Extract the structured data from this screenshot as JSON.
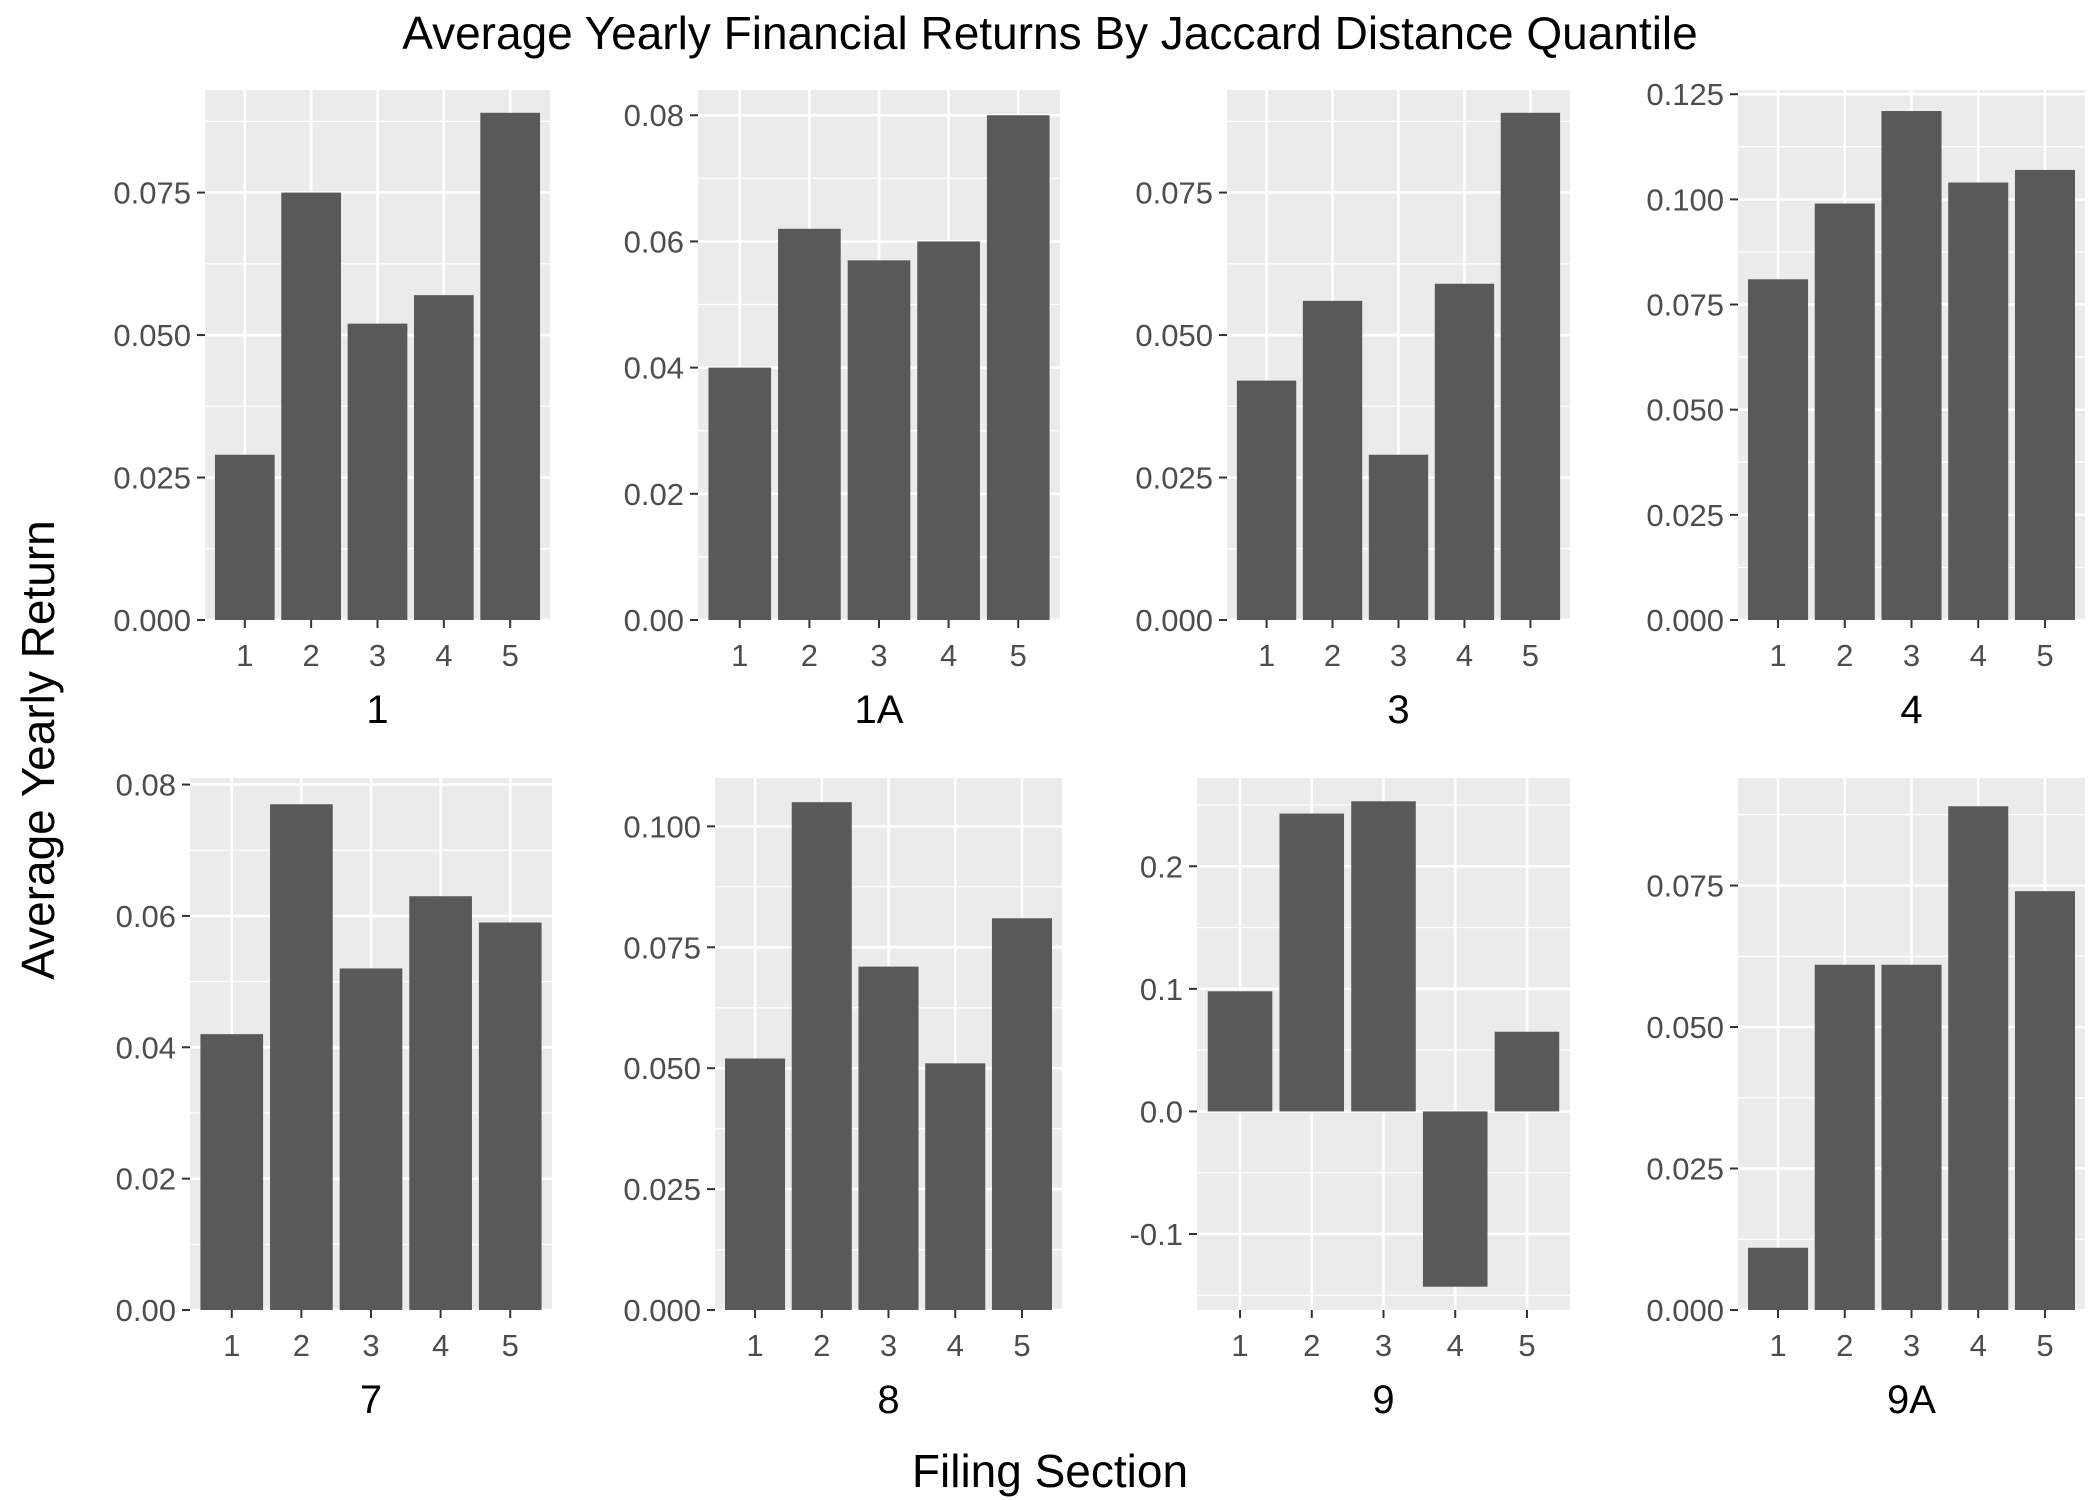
{
  "chart_data": {
    "type": "bar",
    "title": "Average Yearly Financial Returns By Jaccard Distance Quantile",
    "xlabel": "Filing Section",
    "ylabel": "Average Yearly Return",
    "categories": [
      "1",
      "2",
      "3",
      "4",
      "5"
    ],
    "bar_color": "#595959",
    "panel_background": "#ebebeb",
    "grid": true,
    "panels": [
      {
        "label": "1",
        "values": [
          0.029,
          0.075,
          0.052,
          0.057,
          0.089
        ],
        "ylim": [
          0,
          0.093
        ],
        "ticks": [
          0,
          0.025,
          0.05,
          0.075
        ],
        "tick_labels": [
          "0.000",
          "0.025",
          "0.050",
          "0.075"
        ]
      },
      {
        "label": "1A",
        "values": [
          0.04,
          0.062,
          0.057,
          0.06,
          0.08
        ],
        "ylim": [
          0,
          0.084
        ],
        "ticks": [
          0,
          0.02,
          0.04,
          0.06,
          0.08
        ],
        "tick_labels": [
          "0.00",
          "0.02",
          "0.04",
          "0.06",
          "0.08"
        ]
      },
      {
        "label": "3",
        "values": [
          0.042,
          0.056,
          0.029,
          0.059,
          0.089
        ],
        "ylim": [
          0,
          0.093
        ],
        "ticks": [
          0,
          0.025,
          0.05,
          0.075
        ],
        "tick_labels": [
          "0.000",
          "0.025",
          "0.050",
          "0.075"
        ]
      },
      {
        "label": "4",
        "values": [
          0.081,
          0.099,
          0.121,
          0.104,
          0.107
        ],
        "ylim": [
          0,
          0.126
        ],
        "ticks": [
          0,
          0.025,
          0.05,
          0.075,
          0.1,
          0.125
        ],
        "tick_labels": [
          "0.000",
          "0.025",
          "0.050",
          "0.075",
          "0.100",
          "0.125"
        ]
      },
      {
        "label": "7",
        "values": [
          0.042,
          0.077,
          0.052,
          0.063,
          0.059
        ],
        "ylim": [
          0,
          0.081
        ],
        "ticks": [
          0,
          0.02,
          0.04,
          0.06,
          0.08
        ],
        "tick_labels": [
          "0.00",
          "0.02",
          "0.04",
          "0.06",
          "0.08"
        ]
      },
      {
        "label": "8",
        "values": [
          0.052,
          0.105,
          0.071,
          0.051,
          0.081
        ],
        "ylim": [
          0,
          0.11
        ],
        "ticks": [
          0,
          0.025,
          0.05,
          0.075,
          0.1
        ],
        "tick_labels": [
          "0.000",
          "0.025",
          "0.050",
          "0.075",
          "0.100"
        ]
      },
      {
        "label": "9",
        "values": [
          0.098,
          0.243,
          0.253,
          -0.143,
          0.065
        ],
        "ylim": [
          -0.162,
          0.272
        ],
        "ticks": [
          -0.1,
          0,
          0.1,
          0.2
        ],
        "tick_labels": [
          "-0.1",
          "0.0",
          "0.1",
          "0.2"
        ]
      },
      {
        "label": "9A",
        "values": [
          0.011,
          0.061,
          0.061,
          0.089,
          0.074
        ],
        "ylim": [
          0,
          0.094
        ],
        "ticks": [
          0,
          0.025,
          0.05,
          0.075
        ],
        "tick_labels": [
          "0.000",
          "0.025",
          "0.050",
          "0.075"
        ]
      }
    ]
  }
}
